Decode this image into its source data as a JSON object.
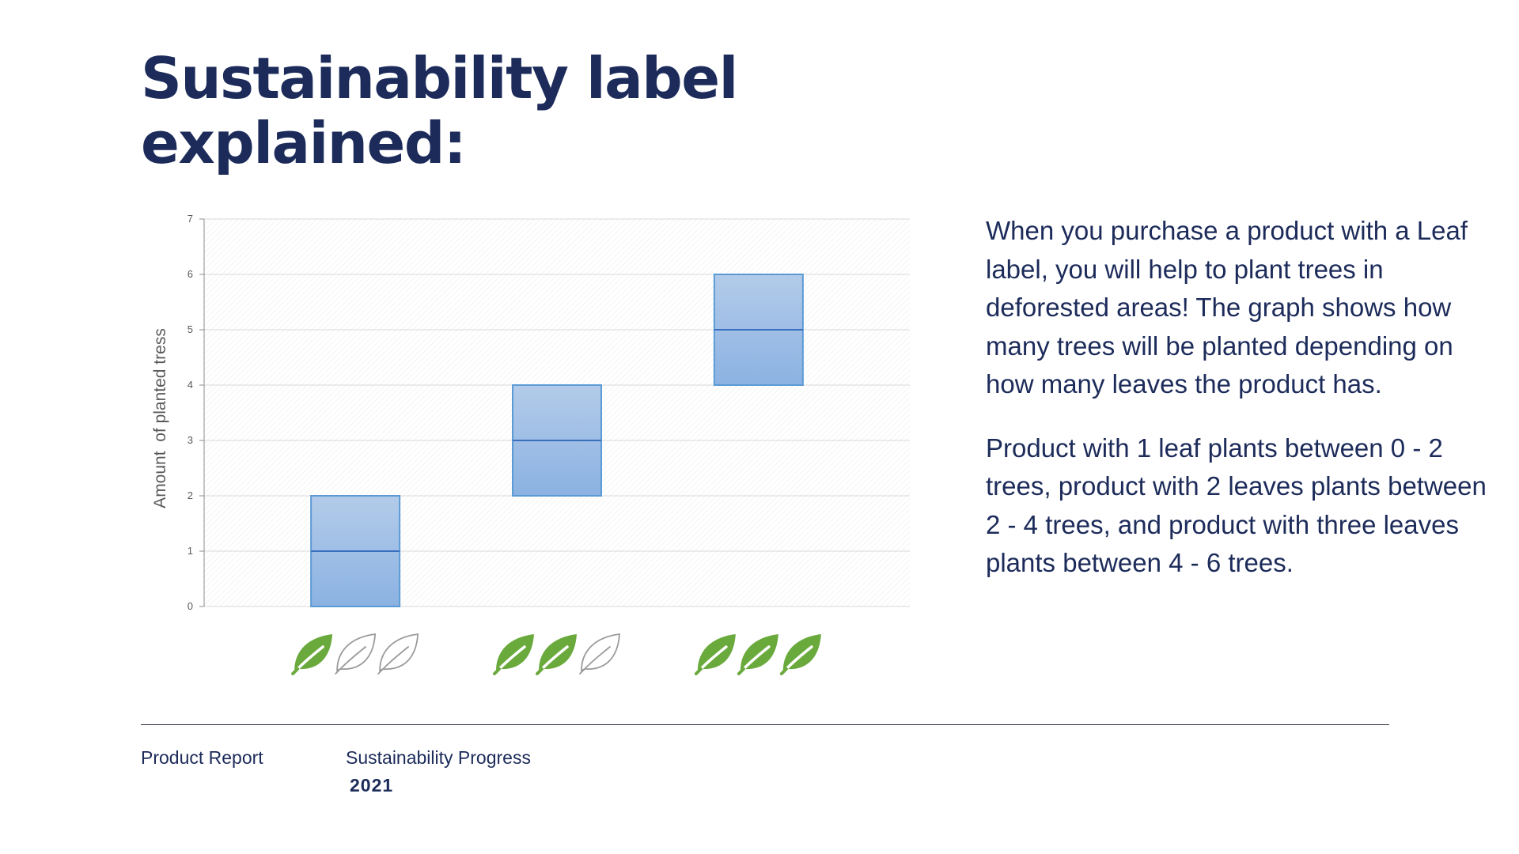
{
  "header": {
    "title_line1": "Sustainability label",
    "title_line2": "explained:"
  },
  "description": {
    "paragraph1": "When you purchase a product with a Leaf label, you will help to plant trees in deforested areas! The graph shows how many trees will be planted depending on how many leaves the product has.",
    "paragraph2": "Product with 1 leaf plants between 0 - 2 trees, product with 2 leaves plants between 2 - 4 trees, and product with three leaves plants between 4 - 6 trees."
  },
  "footer": {
    "report_label": "Product Report",
    "section_label": "Sustainability Progress",
    "year": "2021"
  },
  "colors": {
    "title": "#1c2b5a",
    "box_fill_top": "#b3cbe9",
    "box_fill_bottom": "#8bb2e2",
    "box_stroke": "#5b9bd5",
    "median_line": "#3a6fbd",
    "leaf_green": "#6aaa3d",
    "leaf_outline": "#9a9a9a"
  },
  "chart_data": {
    "type": "box",
    "ylabel": "Amount  of planted tress",
    "xlabel": "",
    "ylim": [
      0,
      7
    ],
    "yticks": [
      "0",
      "1",
      "2",
      "3",
      "4",
      "5",
      "6",
      "7"
    ],
    "grid": true,
    "categories": [
      {
        "leaves": 1,
        "icon": "leaf-icon",
        "low": 0,
        "median": 1,
        "high": 2
      },
      {
        "leaves": 2,
        "icon": "leaf-icon",
        "low": 2,
        "median": 3,
        "high": 4
      },
      {
        "leaves": 3,
        "icon": "leaf-icon",
        "low": 4,
        "median": 5,
        "high": 6
      }
    ],
    "max_leaves": 3
  }
}
